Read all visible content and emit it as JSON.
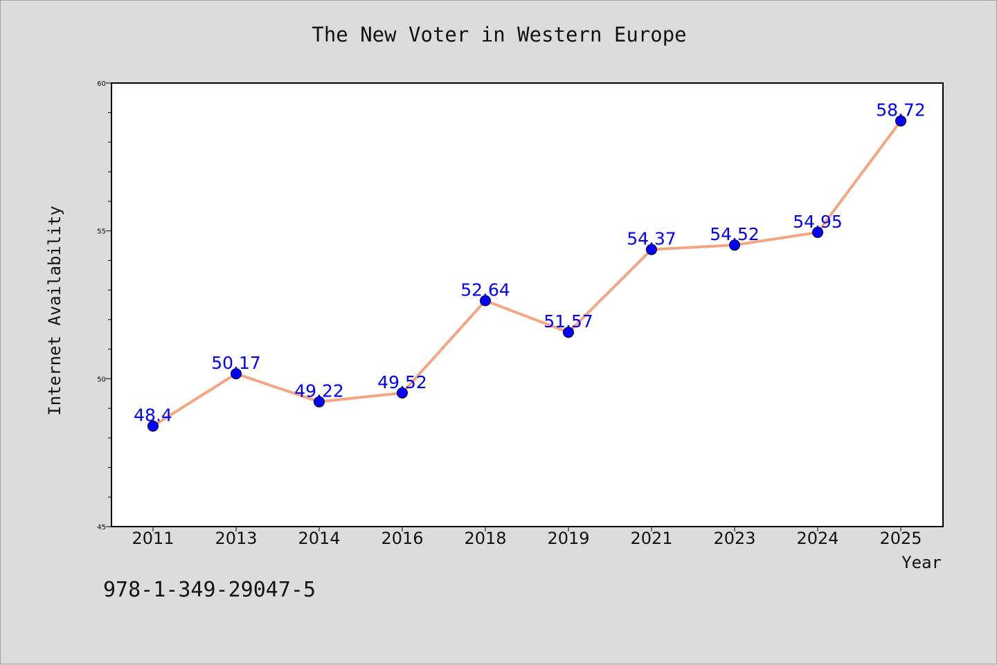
{
  "chart_data": {
    "type": "line",
    "title": "The New Voter in Western Europe",
    "xlabel": "Year",
    "ylabel": "Internet Availability",
    "categories": [
      "2011",
      "2013",
      "2014",
      "2016",
      "2018",
      "2019",
      "2021",
      "2023",
      "2024",
      "2025"
    ],
    "values": [
      48.4,
      50.17,
      49.22,
      49.52,
      52.64,
      51.57,
      54.37,
      54.52,
      54.95,
      58.72
    ],
    "data_labels": [
      "48.4",
      "50.17",
      "49.22",
      "49.52",
      "52.64",
      "51.57",
      "54.37",
      "54.52",
      "54.95",
      "58.72"
    ],
    "ylim": [
      45,
      60
    ],
    "yticks": [
      "45",
      "50",
      "55",
      "60"
    ],
    "grid": false,
    "legend": "none",
    "line_color": "#f4a582",
    "marker_color": "#0000ff"
  },
  "footer": {
    "code": "978-1-349-29047-5"
  }
}
